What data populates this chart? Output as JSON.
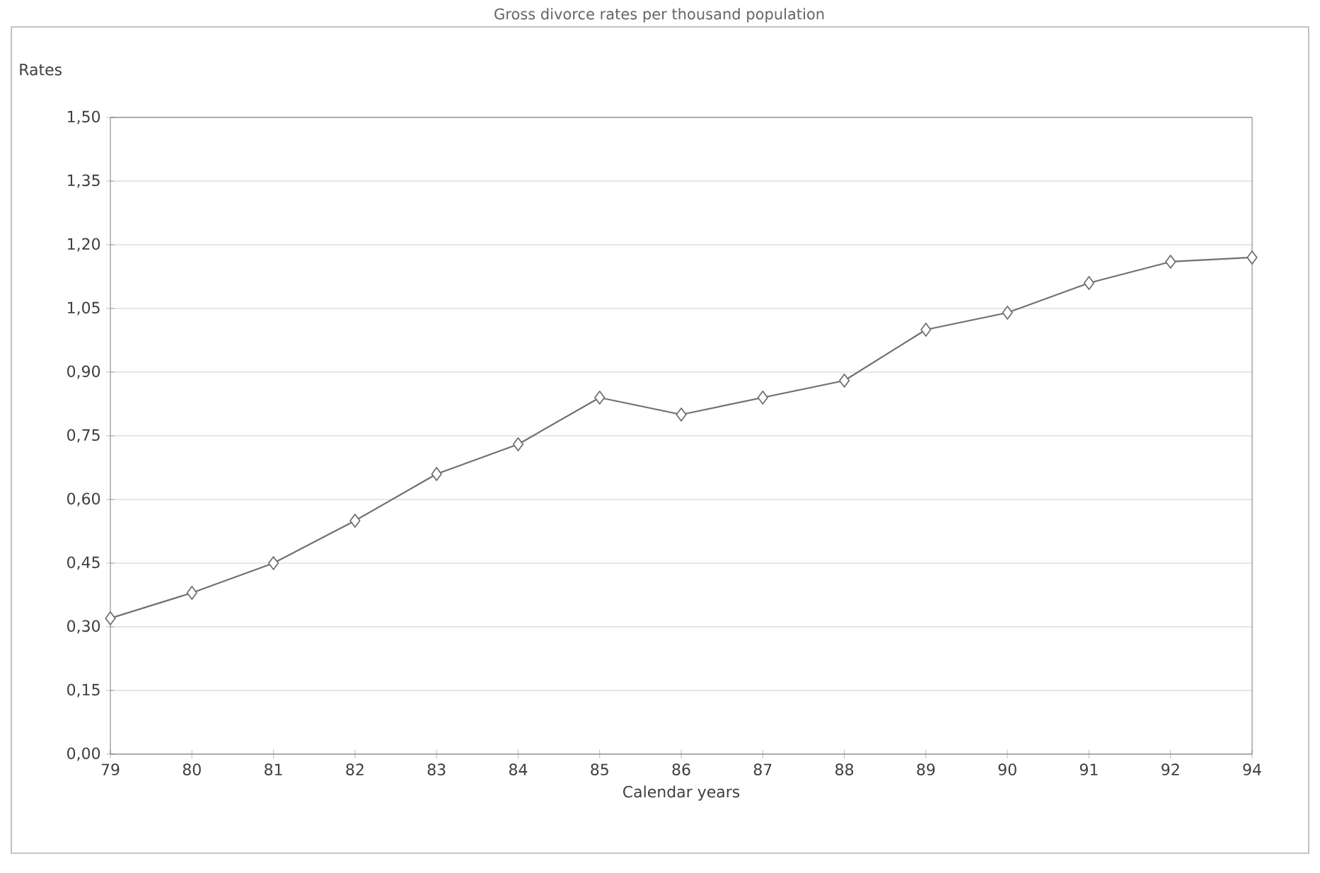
{
  "chart_data": {
    "type": "line",
    "title": "Gross divorce rates per thousand population",
    "xlabel": "Calendar years",
    "ylabel": "Rates",
    "categories": [
      "79",
      "80",
      "81",
      "82",
      "83",
      "84",
      "85",
      "86",
      "87",
      "88",
      "89",
      "90",
      "91",
      "92",
      "94"
    ],
    "series": [
      {
        "color": "#707070",
        "values": [
          0.32,
          0.38,
          0.45,
          0.55,
          0.66,
          0.73,
          0.84,
          0.8,
          0.84,
          0.88,
          1.0,
          1.04,
          1.11,
          1.16,
          1.17
        ]
      }
    ],
    "ylim": [
      0,
      1.5
    ],
    "yticks": [
      {
        "value": 0,
        "label": "0,00"
      },
      {
        "value": 0.15,
        "label": "0,15"
      },
      {
        "value": 0.3,
        "label": "0,30"
      },
      {
        "value": 0.45,
        "label": "0,45"
      },
      {
        "value": 0.6,
        "label": "0,60"
      },
      {
        "value": 0.75,
        "label": "0,75"
      },
      {
        "value": 0.9,
        "label": "0,90"
      },
      {
        "value": 1.05,
        "label": "1,05"
      },
      {
        "value": 1.2,
        "label": "1,20"
      },
      {
        "value": 1.35,
        "label": "1,35"
      },
      {
        "value": 1.5,
        "label": "1,50"
      }
    ],
    "grid": "y",
    "marker": "diamond",
    "line_style": "solid"
  }
}
